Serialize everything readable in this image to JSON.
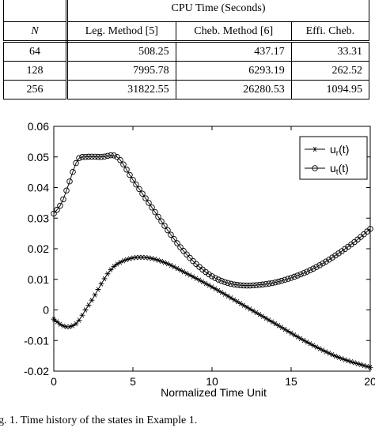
{
  "table": {
    "header": {
      "n_label": "N",
      "group_label": "CPU Time (Seconds)",
      "columns": [
        "Leg. Method [5]",
        "Cheb. Method [6]",
        "Effi. Cheb."
      ]
    },
    "rows": [
      {
        "n": "64",
        "cells": [
          "508.25",
          "437.17",
          "33.31"
        ]
      },
      {
        "n": "128",
        "cells": [
          "7995.78",
          "6293.19",
          "262.52"
        ]
      },
      {
        "n": "256",
        "cells": [
          "31822.55",
          "26280.53",
          "1094.95"
        ]
      }
    ]
  },
  "chart_data": {
    "type": "line",
    "xlabel": "Normalized Time Unit",
    "ylabel": "",
    "xlim": [
      0,
      20
    ],
    "ylim": [
      -0.02,
      0.06
    ],
    "xticks": [
      "0",
      "5",
      "10",
      "15",
      "20"
    ],
    "yticks": [
      "-0.02",
      "-0.01",
      "0",
      "0.01",
      "0.02",
      "0.03",
      "0.04",
      "0.05",
      "0.06"
    ],
    "legend_position": "top-right",
    "series": [
      {
        "name": "u_r(t)",
        "marker": "asterisk",
        "x": [
          0,
          0.5,
          1,
          1.5,
          2,
          2.5,
          3,
          3.5,
          4,
          5,
          6,
          7,
          8,
          10,
          12,
          14,
          16,
          18,
          20
        ],
        "y": [
          -0.003,
          -0.005,
          -0.0055,
          -0.004,
          0.0,
          0.004,
          0.0085,
          0.0125,
          0.015,
          0.017,
          0.017,
          0.0155,
          0.013,
          0.0075,
          0.0015,
          -0.0045,
          -0.0105,
          -0.0155,
          -0.0188
        ]
      },
      {
        "name": "u_t(t)",
        "marker": "circle",
        "x": [
          0,
          0.5,
          1,
          1.5,
          2,
          3,
          4,
          5,
          6,
          7,
          8,
          9,
          10,
          11,
          12,
          13,
          14,
          15,
          16,
          17,
          18,
          19,
          20
        ],
        "y": [
          0.0315,
          0.035,
          0.042,
          0.049,
          0.05,
          0.05,
          0.05,
          0.0425,
          0.035,
          0.0275,
          0.0205,
          0.015,
          0.011,
          0.0088,
          0.008,
          0.0082,
          0.009,
          0.0105,
          0.0125,
          0.0152,
          0.0185,
          0.0222,
          0.0265
        ]
      }
    ]
  },
  "caption": "g. 1.   Time history of the states in Example 1."
}
